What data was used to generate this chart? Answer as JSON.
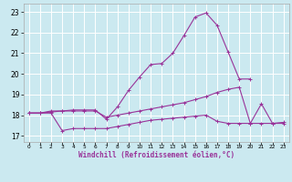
{
  "xlabel": "Windchill (Refroidissement éolien,°C)",
  "background_color": "#cbe9f0",
  "grid_color": "#ffffff",
  "line_color": "#993399",
  "xlim": [
    -0.5,
    23.5
  ],
  "ylim": [
    16.7,
    23.4
  ],
  "yticks": [
    17,
    18,
    19,
    20,
    21,
    22,
    23
  ],
  "xticks": [
    0,
    1,
    2,
    3,
    4,
    5,
    6,
    7,
    8,
    9,
    10,
    11,
    12,
    13,
    14,
    15,
    16,
    17,
    18,
    19,
    20,
    21,
    22,
    23
  ],
  "line1_x": [
    0,
    1,
    2,
    3,
    4,
    5,
    6,
    7,
    8,
    9,
    10,
    11,
    12,
    13,
    14,
    15,
    16,
    17,
    18,
    19,
    20
  ],
  "line1_y": [
    18.1,
    18.1,
    18.2,
    18.2,
    18.25,
    18.25,
    18.25,
    17.8,
    18.4,
    19.2,
    19.85,
    20.45,
    20.5,
    21.0,
    21.85,
    22.75,
    22.95,
    22.35,
    21.05,
    19.75,
    19.75
  ],
  "line2_x": [
    0,
    1,
    2,
    3,
    4,
    5,
    6,
    7,
    8,
    9,
    10,
    11,
    12,
    13,
    14,
    15,
    16,
    17,
    18,
    19,
    20,
    21,
    22,
    23
  ],
  "line2_y": [
    18.1,
    18.1,
    18.1,
    17.25,
    17.35,
    17.35,
    17.35,
    17.35,
    17.45,
    17.55,
    17.65,
    17.75,
    17.8,
    17.85,
    17.9,
    17.95,
    18.0,
    17.7,
    17.6,
    17.6,
    17.6,
    17.6,
    17.6,
    17.6
  ],
  "line3_x": [
    0,
    1,
    2,
    3,
    4,
    5,
    6,
    7,
    8,
    9,
    10,
    11,
    12,
    13,
    14,
    15,
    16,
    17,
    18,
    19,
    20,
    21,
    22,
    23
  ],
  "line3_y": [
    18.1,
    18.1,
    18.15,
    18.2,
    18.2,
    18.2,
    18.2,
    17.9,
    18.0,
    18.1,
    18.2,
    18.3,
    18.4,
    18.5,
    18.6,
    18.75,
    18.9,
    19.1,
    19.25,
    19.35,
    17.6,
    18.55,
    17.6,
    17.65
  ]
}
